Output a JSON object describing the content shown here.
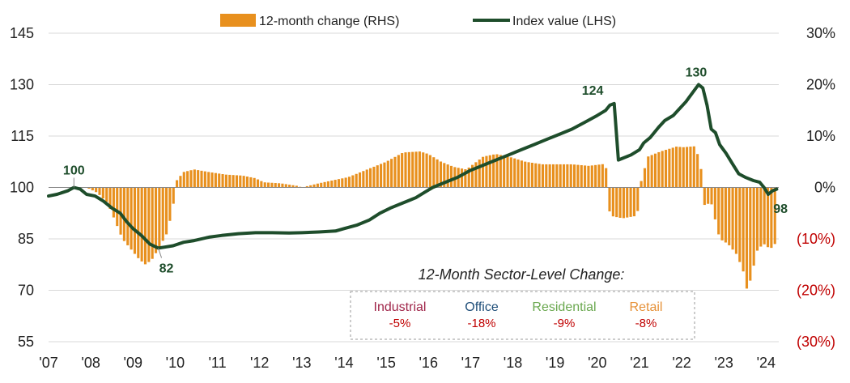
{
  "chart_data": {
    "type": "bar+line",
    "title": "",
    "x_tick_labels": [
      "'07",
      "'08",
      "'09",
      "'10",
      "'11",
      "'12",
      "'13",
      "'14",
      "'15",
      "'16",
      "'17",
      "'18",
      "'19",
      "'20",
      "'21",
      "'22",
      "'23",
      "'24"
    ],
    "left_axis": {
      "ylim": [
        55,
        145
      ],
      "tick_labels": [
        "55",
        "70",
        "85",
        "100",
        "115",
        "130",
        "145"
      ],
      "tick_values": [
        55,
        70,
        85,
        100,
        115,
        130,
        145
      ]
    },
    "right_axis": {
      "ylim": [
        -30,
        30
      ],
      "tick_labels": [
        "(30%)",
        "(20%)",
        "(10%)",
        "0%",
        "10%",
        "20%",
        "30%"
      ],
      "tick_values": [
        -30,
        -20,
        -10,
        0,
        10,
        20,
        30
      ]
    },
    "legend": [
      {
        "name": "12-month change (RHS)",
        "type": "bar",
        "color": "#e8901e"
      },
      {
        "name": "Index value (LHS)",
        "type": "line",
        "color": "#1e4d2b"
      }
    ],
    "bar_series": {
      "name": "12-month change (RHS)",
      "color": "#e8901e",
      "knots": [
        [
          2007.0,
          0
        ],
        [
          2007.9,
          0
        ],
        [
          2008.15,
          -1
        ],
        [
          2008.4,
          -3
        ],
        [
          2008.6,
          -7
        ],
        [
          2008.75,
          -10
        ],
        [
          2008.95,
          -12
        ],
        [
          2009.15,
          -14
        ],
        [
          2009.3,
          -15
        ],
        [
          2009.45,
          -14
        ],
        [
          2009.6,
          -12
        ],
        [
          2009.8,
          -9
        ],
        [
          2009.95,
          -4
        ],
        [
          2010.0,
          1
        ],
        [
          2010.2,
          3
        ],
        [
          2010.45,
          3.5
        ],
        [
          2010.8,
          3
        ],
        [
          2011.2,
          2.5
        ],
        [
          2011.6,
          2.3
        ],
        [
          2011.9,
          1.8
        ],
        [
          2012.1,
          1
        ],
        [
          2012.5,
          0.8
        ],
        [
          2012.9,
          0.3
        ],
        [
          2013.0,
          0
        ],
        [
          2013.4,
          0.8
        ],
        [
          2013.8,
          1.5
        ],
        [
          2014.1,
          2
        ],
        [
          2014.4,
          3
        ],
        [
          2014.7,
          4
        ],
        [
          2015.0,
          5
        ],
        [
          2015.4,
          6.8
        ],
        [
          2015.8,
          7
        ],
        [
          2016.0,
          6.5
        ],
        [
          2016.3,
          5
        ],
        [
          2016.6,
          4
        ],
        [
          2016.9,
          3.5
        ],
        [
          2017.3,
          6
        ],
        [
          2017.6,
          6.5
        ],
        [
          2017.9,
          6
        ],
        [
          2018.3,
          5
        ],
        [
          2018.7,
          4.5
        ],
        [
          2019.0,
          4.5
        ],
        [
          2019.4,
          4.5
        ],
        [
          2019.8,
          4.2
        ],
        [
          2020.2,
          4.6
        ],
        [
          2020.3,
          -5.5
        ],
        [
          2020.6,
          -6
        ],
        [
          2020.95,
          -5.5
        ],
        [
          2021.0,
          0
        ],
        [
          2021.2,
          6
        ],
        [
          2021.5,
          7
        ],
        [
          2021.7,
          7.5
        ],
        [
          2021.9,
          8
        ],
        [
          2022.0,
          7.8
        ],
        [
          2022.3,
          8
        ],
        [
          2022.45,
          5
        ],
        [
          2022.5,
          -3.5
        ],
        [
          2022.7,
          -3
        ],
        [
          2022.9,
          -10
        ],
        [
          2023.1,
          -11
        ],
        [
          2023.3,
          -13
        ],
        [
          2023.45,
          -16
        ],
        [
          2023.55,
          -20
        ],
        [
          2023.6,
          -19
        ],
        [
          2023.8,
          -12
        ],
        [
          2023.95,
          -11
        ],
        [
          2024.1,
          -12
        ],
        [
          2024.2,
          -11
        ],
        [
          2024.25,
          -11
        ]
      ]
    },
    "line_series": {
      "name": "Index value (LHS)",
      "color": "#1e4d2b",
      "points": [
        [
          2007.0,
          97.5
        ],
        [
          2007.2,
          98
        ],
        [
          2007.45,
          99
        ],
        [
          2007.6,
          100
        ],
        [
          2007.75,
          99.5
        ],
        [
          2007.9,
          98
        ],
        [
          2008.1,
          97.5
        ],
        [
          2008.3,
          96
        ],
        [
          2008.5,
          94
        ],
        [
          2008.7,
          92.5
        ],
        [
          2008.85,
          90
        ],
        [
          2009.0,
          88
        ],
        [
          2009.2,
          86
        ],
        [
          2009.4,
          83.5
        ],
        [
          2009.6,
          82.3
        ],
        [
          2009.75,
          82.6
        ],
        [
          2009.95,
          83
        ],
        [
          2010.2,
          84
        ],
        [
          2010.45,
          84.5
        ],
        [
          2010.8,
          85.5
        ],
        [
          2011.1,
          86
        ],
        [
          2011.5,
          86.5
        ],
        [
          2011.9,
          86.8
        ],
        [
          2012.3,
          86.8
        ],
        [
          2012.7,
          86.7
        ],
        [
          2013.0,
          86.8
        ],
        [
          2013.4,
          87
        ],
        [
          2013.8,
          87.3
        ],
        [
          2014.0,
          88
        ],
        [
          2014.3,
          89
        ],
        [
          2014.6,
          90.5
        ],
        [
          2014.85,
          92.5
        ],
        [
          2015.1,
          94
        ],
        [
          2015.4,
          95.5
        ],
        [
          2015.7,
          97
        ],
        [
          2015.9,
          98.5
        ],
        [
          2016.1,
          100
        ],
        [
          2016.4,
          101.5
        ],
        [
          2016.7,
          103
        ],
        [
          2017.0,
          105
        ],
        [
          2017.3,
          106.5
        ],
        [
          2017.6,
          108
        ],
        [
          2017.9,
          109.5
        ],
        [
          2018.2,
          111
        ],
        [
          2018.5,
          112.5
        ],
        [
          2018.8,
          114
        ],
        [
          2019.1,
          115.5
        ],
        [
          2019.4,
          117
        ],
        [
          2019.7,
          119
        ],
        [
          2020.0,
          121
        ],
        [
          2020.2,
          122.5
        ],
        [
          2020.3,
          124
        ],
        [
          2020.4,
          124.5
        ],
        [
          2020.5,
          108
        ],
        [
          2020.6,
          108.5
        ],
        [
          2020.8,
          109.5
        ],
        [
          2021.0,
          111
        ],
        [
          2021.1,
          113
        ],
        [
          2021.25,
          114.5
        ],
        [
          2021.45,
          117.5
        ],
        [
          2021.6,
          119.5
        ],
        [
          2021.8,
          121
        ],
        [
          2021.95,
          123
        ],
        [
          2022.1,
          125
        ],
        [
          2022.25,
          127.5
        ],
        [
          2022.4,
          130
        ],
        [
          2022.5,
          129
        ],
        [
          2022.6,
          124
        ],
        [
          2022.7,
          117
        ],
        [
          2022.8,
          116
        ],
        [
          2022.9,
          112.5
        ],
        [
          2023.05,
          110
        ],
        [
          2023.2,
          107
        ],
        [
          2023.35,
          104
        ],
        [
          2023.5,
          103
        ],
        [
          2023.7,
          102
        ],
        [
          2023.85,
          101.5
        ],
        [
          2023.95,
          100
        ],
        [
          2024.05,
          98
        ],
        [
          2024.15,
          99
        ],
        [
          2024.25,
          99.5
        ]
      ]
    },
    "annotations": [
      {
        "text": "100",
        "x": 2007.6,
        "y": 100
      },
      {
        "text": "82",
        "x": 2009.6,
        "y": 82.3
      },
      {
        "text": "124",
        "x": 2020.35,
        "y": 124.5
      },
      {
        "text": "130",
        "x": 2022.4,
        "y": 130
      },
      {
        "text": "98",
        "x": 2024.15,
        "y": 98
      }
    ],
    "sector_box": {
      "title": "12-Month Sector-Level Change:",
      "sectors": [
        {
          "name": "Industrial",
          "value": "-5%",
          "color": "#a0264a"
        },
        {
          "name": "Office",
          "value": "-18%",
          "color": "#1f4e79"
        },
        {
          "name": "Residential",
          "value": "-9%",
          "color": "#6aa84f"
        },
        {
          "name": "Retail",
          "value": "-8%",
          "color": "#e69138"
        }
      ]
    }
  }
}
